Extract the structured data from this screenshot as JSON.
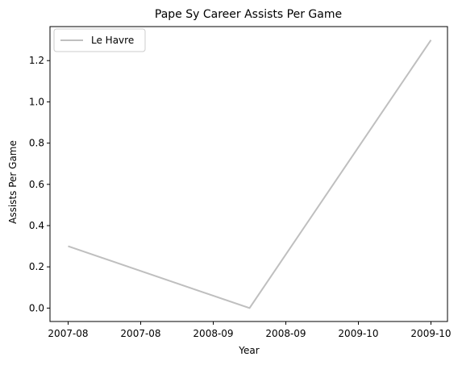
{
  "chart_data": {
    "type": "line",
    "title": "Pape Sy Career Assists Per Game",
    "xlabel": "Year",
    "ylabel": "Assists Per Game",
    "x_tick_labels": [
      "2007-08",
      "2007-08",
      "2008-09",
      "2008-09",
      "2009-10",
      "2009-10"
    ],
    "y_tick_labels": [
      "0.0",
      "0.2",
      "0.4",
      "0.6",
      "0.8",
      "1.0",
      "1.2"
    ],
    "y_ticks": [
      0.0,
      0.2,
      0.4,
      0.6,
      0.8,
      1.0,
      1.2
    ],
    "ylim": [
      -0.065,
      1.365
    ],
    "grid": false,
    "legend_position": "top-left",
    "series": [
      {
        "name": "Le Havre",
        "color": "#bfbfbf",
        "points": [
          {
            "x": "2007-08",
            "y": 0.3
          },
          {
            "x": "2008-09",
            "y": 0.0
          },
          {
            "x": "2009-10",
            "y": 1.3
          }
        ]
      }
    ]
  }
}
